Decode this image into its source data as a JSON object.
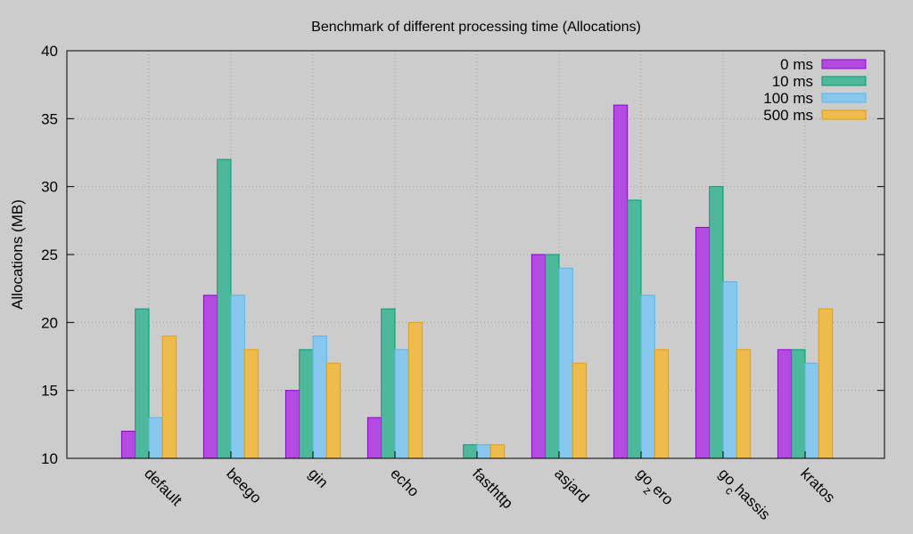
{
  "chart_data": {
    "type": "bar",
    "title": "Benchmark of different processing time (Allocations)",
    "xlabel": "",
    "ylabel": "Allocations (MB)",
    "ylim": [
      10,
      40
    ],
    "yticks": [
      "10",
      "15",
      "20",
      "25",
      "30",
      "35",
      "40"
    ],
    "grid": true,
    "legend_position": "top-right",
    "categories": [
      "default",
      "beego",
      "gin",
      "echo",
      "fasthttp",
      "asjard",
      "go_zero",
      "go_chassis",
      "kratos"
    ],
    "series": [
      {
        "name": "0 ms",
        "fill": "#b44be1",
        "stroke": "#9400d3",
        "values": [
          12,
          22,
          15,
          13,
          10,
          25,
          36,
          27,
          18
        ]
      },
      {
        "name": "10 ms",
        "fill": "#4db89a",
        "stroke": "#009e73",
        "values": [
          21,
          32,
          18,
          21,
          11,
          25,
          29,
          30,
          18
        ]
      },
      {
        "name": "100 ms",
        "fill": "#88c8ee",
        "stroke": "#56b4e9",
        "values": [
          13,
          22,
          19,
          18,
          11,
          24,
          22,
          23,
          17
        ]
      },
      {
        "name": "500 ms",
        "fill": "#eebb4d",
        "stroke": "#e69f00",
        "values": [
          19,
          18,
          17,
          20,
          11,
          17,
          18,
          18,
          21
        ]
      }
    ]
  }
}
